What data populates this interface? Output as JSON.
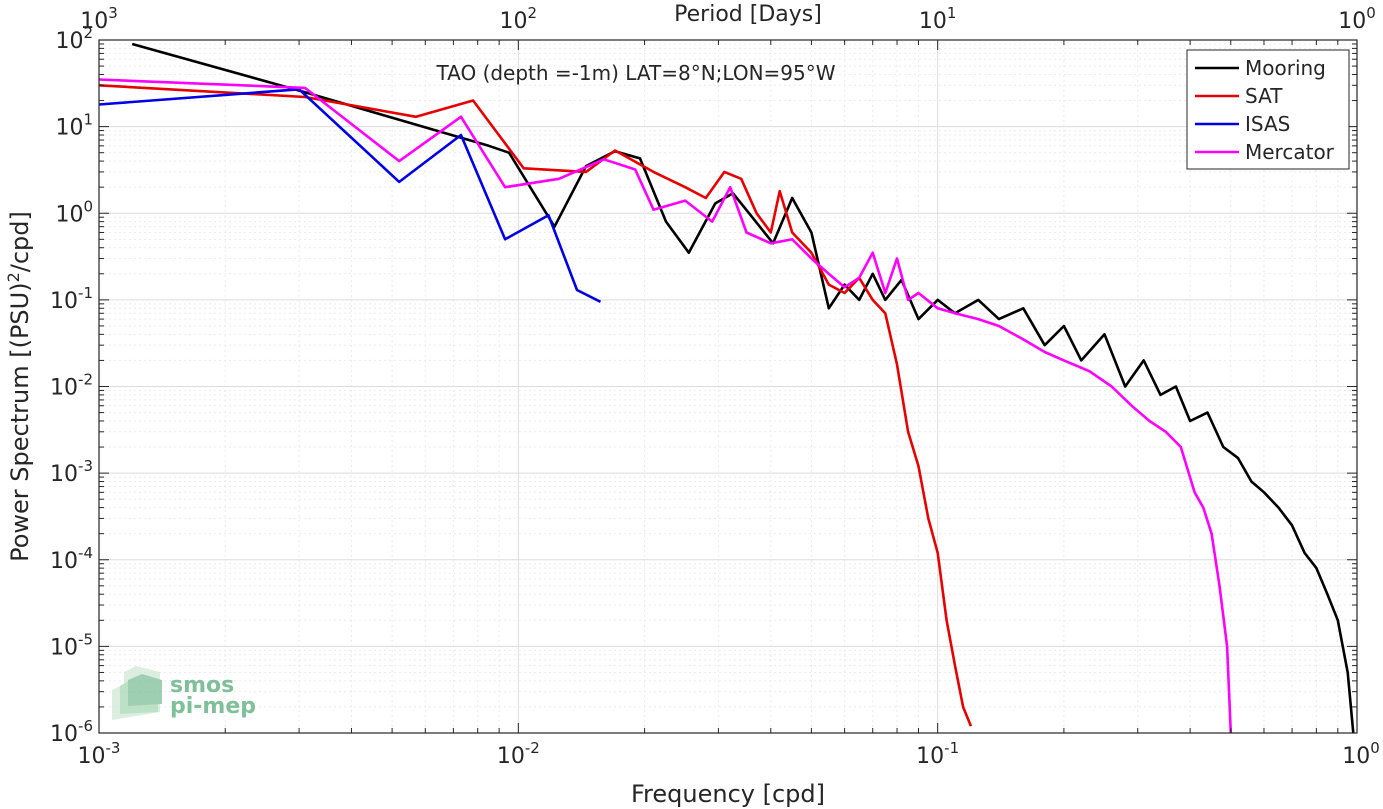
{
  "chart_data": {
    "type": "line",
    "title": "TAO (depth =-1m) LAT=8°N;LON=95°W",
    "xlabel": "Frequency [cpd]",
    "ylabel_parts": [
      "Power Spectrum [(PSU)",
      "2",
      "/cpd]"
    ],
    "top_axis_label": "Period [Days]",
    "xscale": "log",
    "yscale": "log",
    "xlim": [
      0.001,
      1
    ],
    "ylim": [
      1e-06,
      100
    ],
    "grid": true,
    "legend_position": "top-right",
    "x_ticks": [
      {
        "base": "10",
        "exp": "-3",
        "value": 0.001
      },
      {
        "base": "10",
        "exp": "-2",
        "value": 0.01
      },
      {
        "base": "10",
        "exp": "-1",
        "value": 0.1
      },
      {
        "base": "10",
        "exp": "0",
        "value": 1
      }
    ],
    "top_ticks": [
      {
        "base": "10",
        "exp": "3",
        "value": 0.001
      },
      {
        "base": "10",
        "exp": "2",
        "value": 0.01
      },
      {
        "base": "10",
        "exp": "1",
        "value": 0.1
      },
      {
        "base": "10",
        "exp": "0",
        "value": 1
      }
    ],
    "y_ticks": [
      {
        "base": "10",
        "exp": "2",
        "value": 100
      },
      {
        "base": "10",
        "exp": "1",
        "value": 10
      },
      {
        "base": "10",
        "exp": "0",
        "value": 1
      },
      {
        "base": "10",
        "exp": "-1",
        "value": 0.1
      },
      {
        "base": "10",
        "exp": "-2",
        "value": 0.01
      },
      {
        "base": "10",
        "exp": "-3",
        "value": 0.001
      },
      {
        "base": "10",
        "exp": "-4",
        "value": 0.0001
      },
      {
        "base": "10",
        "exp": "-5",
        "value": 1e-05
      },
      {
        "base": "10",
        "exp": "-6",
        "value": 1e-06
      }
    ],
    "series": [
      {
        "name": "Mooring",
        "color": "#000000",
        "points": [
          [
            0.0012,
            90
          ],
          [
            0.0031,
            25
          ],
          [
            0.0052,
            12
          ],
          [
            0.0085,
            6
          ],
          [
            0.0095,
            5
          ],
          [
            0.0122,
            0.7
          ],
          [
            0.0145,
            3.5
          ],
          [
            0.017,
            5.2
          ],
          [
            0.0195,
            4.3
          ],
          [
            0.0225,
            0.8
          ],
          [
            0.0255,
            0.35
          ],
          [
            0.0295,
            1.3
          ],
          [
            0.0325,
            1.7
          ],
          [
            0.0355,
            1.0
          ],
          [
            0.0405,
            0.45
          ],
          [
            0.045,
            1.5
          ],
          [
            0.05,
            0.6
          ],
          [
            0.055,
            0.08
          ],
          [
            0.06,
            0.15
          ],
          [
            0.065,
            0.1
          ],
          [
            0.07,
            0.2
          ],
          [
            0.075,
            0.1
          ],
          [
            0.082,
            0.17
          ],
          [
            0.09,
            0.06
          ],
          [
            0.1,
            0.1
          ],
          [
            0.11,
            0.07
          ],
          [
            0.125,
            0.1
          ],
          [
            0.14,
            0.06
          ],
          [
            0.16,
            0.08
          ],
          [
            0.18,
            0.03
          ],
          [
            0.2,
            0.05
          ],
          [
            0.22,
            0.02
          ],
          [
            0.25,
            0.04
          ],
          [
            0.28,
            0.01
          ],
          [
            0.31,
            0.02
          ],
          [
            0.34,
            0.008
          ],
          [
            0.37,
            0.01
          ],
          [
            0.4,
            0.004
          ],
          [
            0.44,
            0.005
          ],
          [
            0.48,
            0.002
          ],
          [
            0.52,
            0.0015
          ],
          [
            0.56,
            0.0008
          ],
          [
            0.6,
            0.0006
          ],
          [
            0.65,
            0.0004
          ],
          [
            0.7,
            0.00025
          ],
          [
            0.75,
            0.00012
          ],
          [
            0.8,
            8e-05
          ],
          [
            0.85,
            4e-05
          ],
          [
            0.9,
            2e-05
          ],
          [
            0.95,
            5e-06
          ],
          [
            0.98,
            1e-06
          ]
        ]
      },
      {
        "name": "SAT",
        "color": "#e60000",
        "points": [
          [
            0.001,
            30
          ],
          [
            0.0031,
            22
          ],
          [
            0.0057,
            13
          ],
          [
            0.0078,
            20
          ],
          [
            0.0103,
            3.3
          ],
          [
            0.0145,
            3.0
          ],
          [
            0.017,
            5.3
          ],
          [
            0.021,
            3
          ],
          [
            0.025,
            2
          ],
          [
            0.028,
            1.5
          ],
          [
            0.031,
            3
          ],
          [
            0.034,
            2.5
          ],
          [
            0.037,
            1.0
          ],
          [
            0.04,
            0.6
          ],
          [
            0.042,
            1.8
          ],
          [
            0.045,
            0.6
          ],
          [
            0.05,
            0.35
          ],
          [
            0.055,
            0.15
          ],
          [
            0.06,
            0.12
          ],
          [
            0.065,
            0.18
          ],
          [
            0.07,
            0.1
          ],
          [
            0.075,
            0.07
          ],
          [
            0.08,
            0.018
          ],
          [
            0.085,
            0.003
          ],
          [
            0.09,
            0.0012
          ],
          [
            0.095,
            0.0003
          ],
          [
            0.1,
            0.00012
          ],
          [
            0.105,
            2e-05
          ],
          [
            0.11,
            6e-06
          ],
          [
            0.115,
            2e-06
          ],
          [
            0.12,
            1.2e-06
          ]
        ]
      },
      {
        "name": "ISAS",
        "color": "#0000e6",
        "points": [
          [
            0.001,
            18
          ],
          [
            0.003,
            27
          ],
          [
            0.0052,
            2.3
          ],
          [
            0.0073,
            8
          ],
          [
            0.0093,
            0.5
          ],
          [
            0.0118,
            0.95
          ],
          [
            0.0138,
            0.13
          ],
          [
            0.0157,
            0.095
          ]
        ]
      },
      {
        "name": "Mercator",
        "color": "#ff00ff",
        "points": [
          [
            0.001,
            35
          ],
          [
            0.0031,
            28
          ],
          [
            0.0052,
            4
          ],
          [
            0.0073,
            13
          ],
          [
            0.0093,
            2
          ],
          [
            0.0125,
            2.5
          ],
          [
            0.016,
            4.2
          ],
          [
            0.019,
            3.2
          ],
          [
            0.021,
            1.1
          ],
          [
            0.025,
            1.4
          ],
          [
            0.029,
            0.8
          ],
          [
            0.032,
            2.0
          ],
          [
            0.035,
            0.6
          ],
          [
            0.04,
            0.45
          ],
          [
            0.045,
            0.5
          ],
          [
            0.05,
            0.3
          ],
          [
            0.055,
            0.2
          ],
          [
            0.06,
            0.14
          ],
          [
            0.065,
            0.18
          ],
          [
            0.07,
            0.35
          ],
          [
            0.075,
            0.12
          ],
          [
            0.08,
            0.3
          ],
          [
            0.085,
            0.1
          ],
          [
            0.09,
            0.12
          ],
          [
            0.1,
            0.08
          ],
          [
            0.11,
            0.07
          ],
          [
            0.125,
            0.06
          ],
          [
            0.14,
            0.05
          ],
          [
            0.16,
            0.035
          ],
          [
            0.18,
            0.025
          ],
          [
            0.2,
            0.02
          ],
          [
            0.23,
            0.015
          ],
          [
            0.26,
            0.01
          ],
          [
            0.29,
            0.006
          ],
          [
            0.32,
            0.004
          ],
          [
            0.35,
            0.003
          ],
          [
            0.38,
            0.002
          ],
          [
            0.41,
            0.0006
          ],
          [
            0.43,
            0.0004
          ],
          [
            0.45,
            0.0002
          ],
          [
            0.47,
            5e-05
          ],
          [
            0.49,
            1e-05
          ],
          [
            0.5,
            1e-06
          ]
        ]
      }
    ]
  },
  "logo": {
    "line1": "smos",
    "line2": "pi-mep",
    "color": "#7fbf9a"
  }
}
